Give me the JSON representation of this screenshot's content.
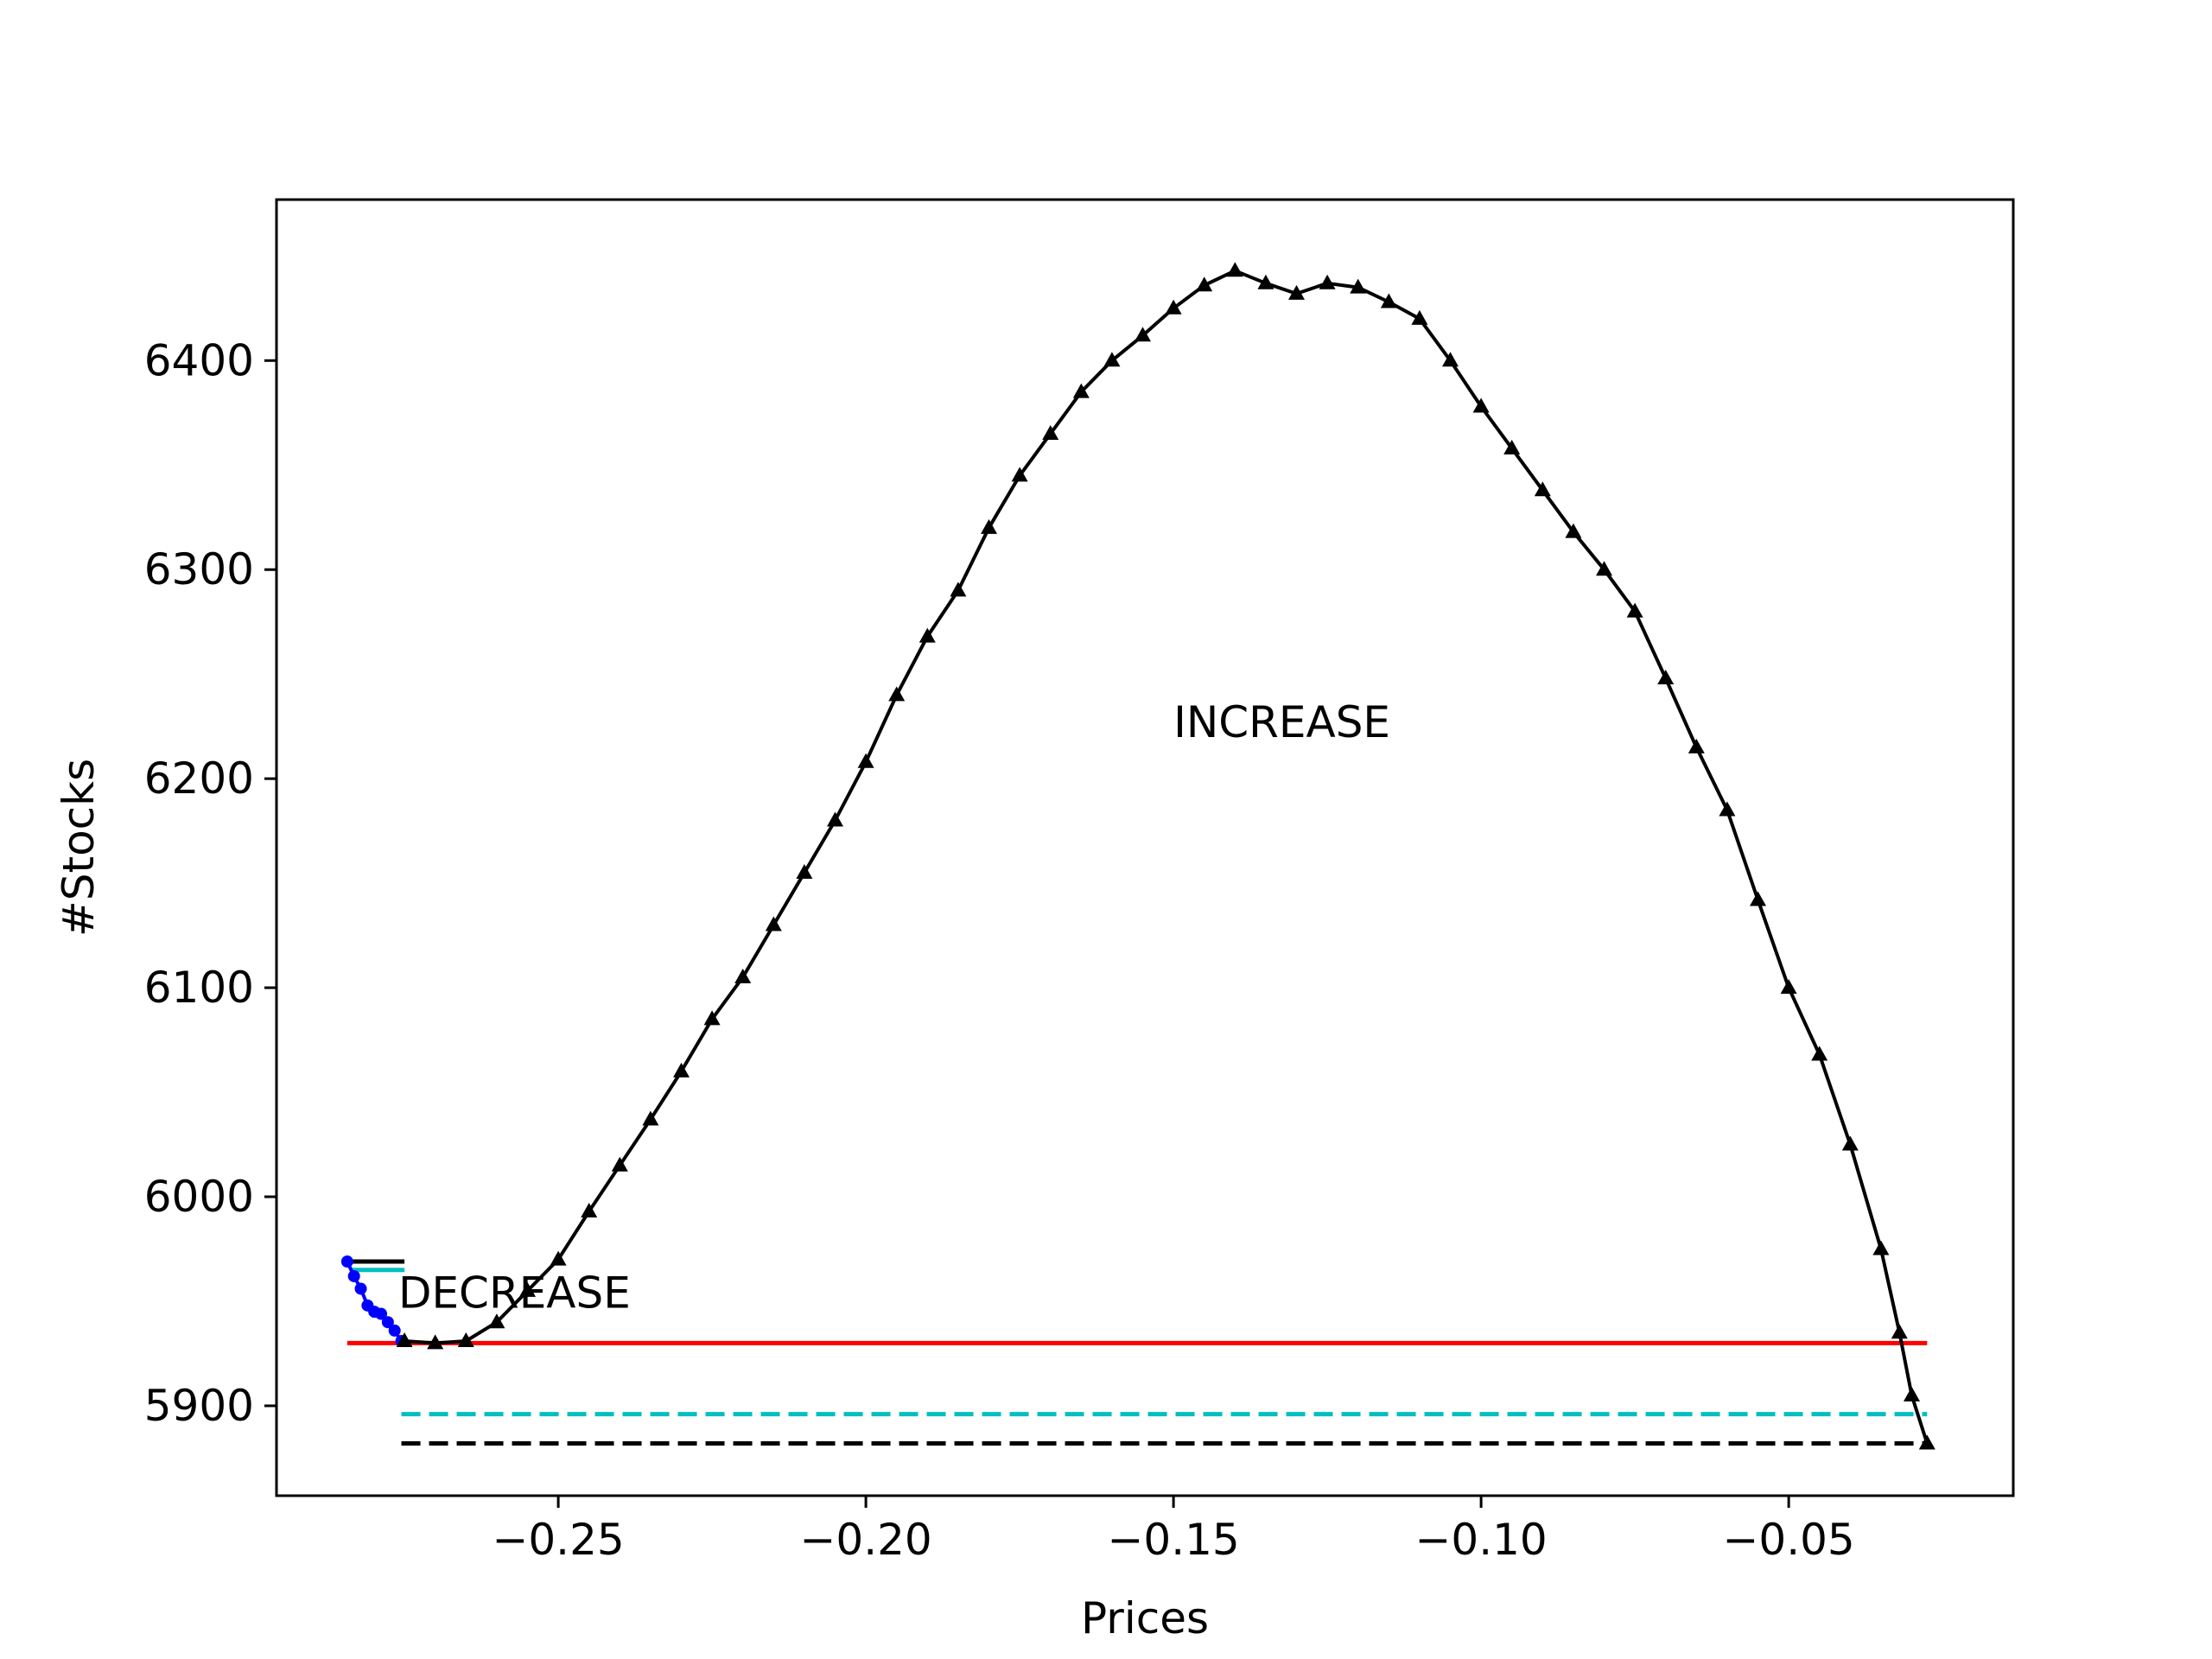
{
  "chart_data": {
    "type": "line",
    "title": "",
    "xlabel": "Prices",
    "ylabel": "#Stocks",
    "xlim": [
      -0.2958,
      -0.0135
    ],
    "ylim": [
      5857,
      6477
    ],
    "xticks": [
      {
        "value": -0.25,
        "label": "−0.25"
      },
      {
        "value": -0.2,
        "label": "−0.20"
      },
      {
        "value": -0.15,
        "label": "−0.15"
      },
      {
        "value": -0.1,
        "label": "−0.10"
      },
      {
        "value": -0.05,
        "label": "−0.05"
      }
    ],
    "yticks": [
      {
        "value": 5900,
        "label": "5900"
      },
      {
        "value": 6000,
        "label": "6000"
      },
      {
        "value": 6100,
        "label": "6100"
      },
      {
        "value": 6200,
        "label": "6200"
      },
      {
        "value": 6300,
        "label": "6300"
      },
      {
        "value": 6400,
        "label": "6400"
      }
    ],
    "grid": false,
    "annotations": [
      {
        "text": "INCREASE",
        "x": -0.15,
        "y": 6220
      },
      {
        "text": "DECREASE",
        "x": -0.276,
        "y": 5947
      }
    ],
    "series": [
      {
        "style": "decrease",
        "color": "#0000ff",
        "marker": "circle",
        "points": [
          [
            -0.2843,
            5969
          ],
          [
            -0.2832,
            5962
          ],
          [
            -0.2821,
            5956
          ],
          [
            -0.281,
            5948
          ],
          [
            -0.2799,
            5945
          ],
          [
            -0.2788,
            5944
          ],
          [
            -0.2777,
            5940
          ],
          [
            -0.2766,
            5936
          ],
          [
            -0.2755,
            5931
          ]
        ]
      },
      {
        "style": "increase",
        "color": "#000000",
        "marker": "triangle",
        "points": [
          [
            -0.275,
            5931
          ],
          [
            -0.27,
            5930
          ],
          [
            -0.265,
            5931
          ],
          [
            -0.26,
            5940
          ],
          [
            -0.255,
            5955
          ],
          [
            -0.25,
            5970
          ],
          [
            -0.245,
            5993
          ],
          [
            -0.24,
            6015
          ],
          [
            -0.235,
            6037
          ],
          [
            -0.23,
            6060
          ],
          [
            -0.225,
            6085
          ],
          [
            -0.22,
            6105
          ],
          [
            -0.215,
            6130
          ],
          [
            -0.21,
            6155
          ],
          [
            -0.205,
            6180
          ],
          [
            -0.2,
            6208
          ],
          [
            -0.195,
            6240
          ],
          [
            -0.19,
            6268
          ],
          [
            -0.185,
            6290
          ],
          [
            -0.18,
            6320
          ],
          [
            -0.175,
            6345
          ],
          [
            -0.17,
            6365
          ],
          [
            -0.165,
            6385
          ],
          [
            -0.16,
            6400
          ],
          [
            -0.155,
            6412
          ],
          [
            -0.15,
            6425
          ],
          [
            -0.145,
            6436
          ],
          [
            -0.14,
            6443
          ],
          [
            -0.135,
            6437
          ],
          [
            -0.13,
            6432
          ],
          [
            -0.125,
            6437
          ],
          [
            -0.12,
            6435
          ],
          [
            -0.115,
            6428
          ],
          [
            -0.11,
            6420
          ],
          [
            -0.105,
            6400
          ],
          [
            -0.1,
            6378
          ],
          [
            -0.095,
            6358
          ],
          [
            -0.09,
            6338
          ],
          [
            -0.085,
            6318
          ],
          [
            -0.08,
            6300
          ],
          [
            -0.075,
            6280
          ],
          [
            -0.07,
            6248
          ],
          [
            -0.065,
            6215
          ],
          [
            -0.06,
            6185
          ],
          [
            -0.055,
            6142
          ],
          [
            -0.05,
            6100
          ],
          [
            -0.045,
            6068
          ],
          [
            -0.04,
            6025
          ],
          [
            -0.035,
            5975
          ],
          [
            -0.032,
            5935
          ],
          [
            -0.03,
            5905
          ],
          [
            -0.0275,
            5882
          ]
        ]
      }
    ],
    "reference_lines": [
      {
        "y": 5930,
        "x_start": -0.2843,
        "x_end": -0.0275,
        "color": "#ff0000",
        "dashed": false
      },
      {
        "y": 5896,
        "x_start": -0.2755,
        "x_end": -0.0275,
        "color": "#00bfbf",
        "dashed": true
      },
      {
        "y": 5882,
        "x_start": -0.2755,
        "x_end": -0.0275,
        "color": "#000000",
        "dashed": true
      },
      {
        "y": 5969,
        "x_start": -0.2836,
        "x_end": -0.275,
        "color": "#000000",
        "dashed": false
      },
      {
        "y": 5965,
        "x_start": -0.2836,
        "x_end": -0.275,
        "color": "#00bfbf",
        "dashed": false
      }
    ]
  }
}
